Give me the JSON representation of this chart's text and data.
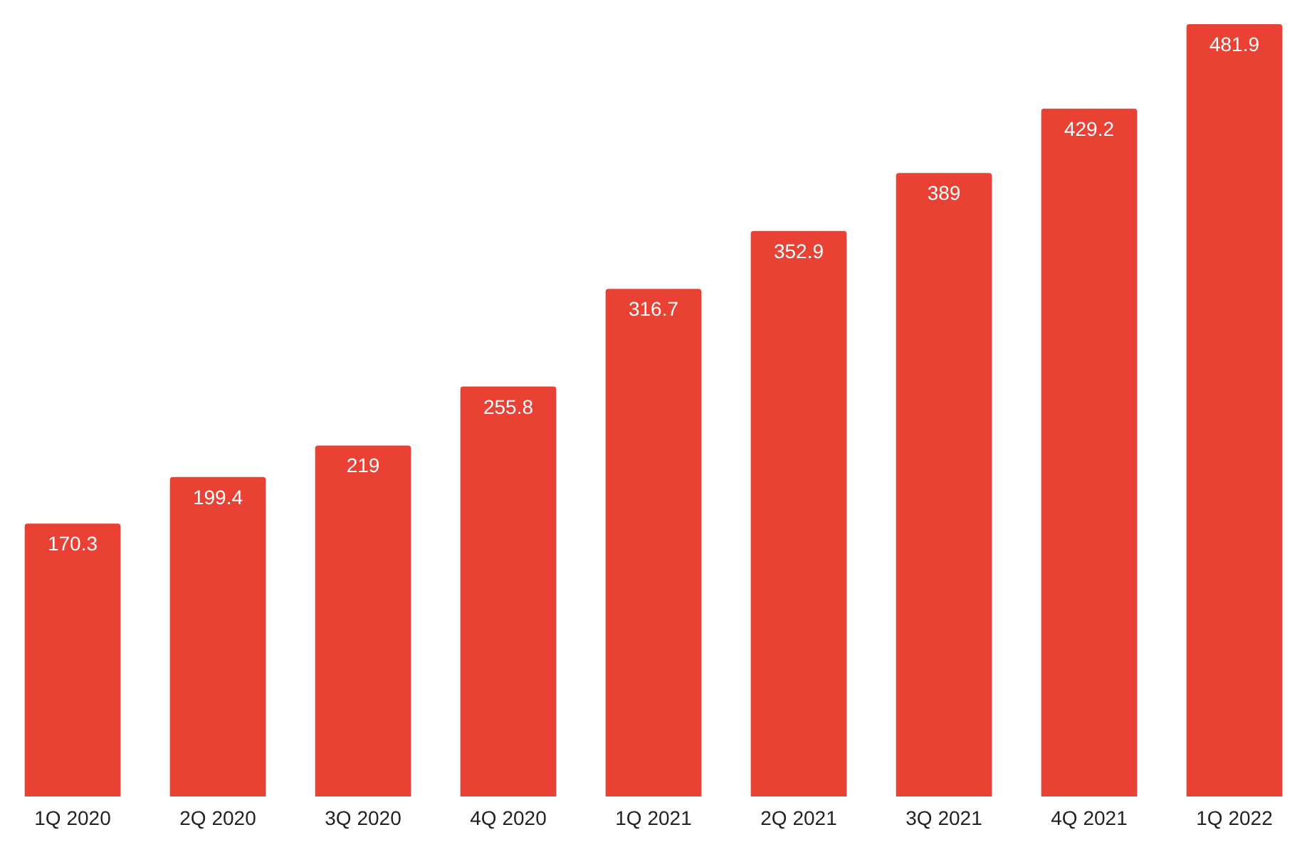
{
  "chart_data": {
    "type": "bar",
    "categories": [
      "1Q 2020",
      "2Q 2020",
      "3Q 2020",
      "4Q 2020",
      "1Q 2021",
      "2Q 2021",
      "3Q 2021",
      "4Q 2021",
      "1Q 2022"
    ],
    "values": [
      170.3,
      199.4,
      219,
      255.8,
      316.7,
      352.9,
      389,
      429.2,
      481.9
    ],
    "color": "#e94235",
    "data_labels": true
  }
}
